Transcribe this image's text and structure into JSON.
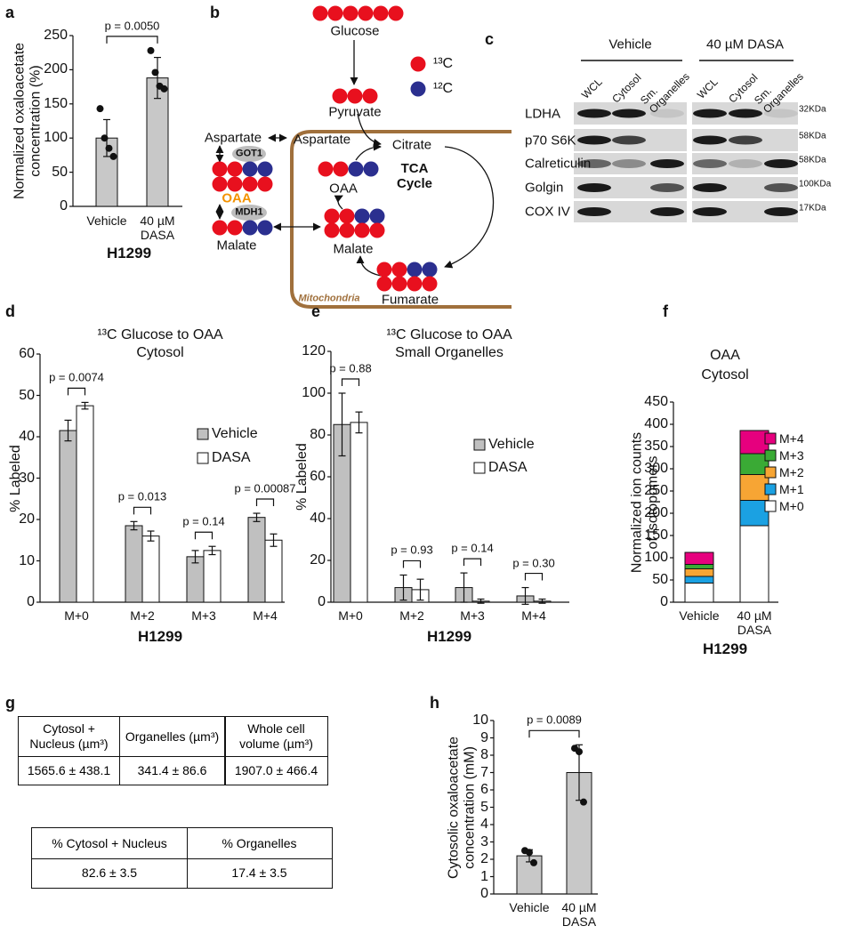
{
  "panel_labels": [
    "a",
    "b",
    "c",
    "d",
    "e",
    "f",
    "g",
    "h"
  ],
  "chart_data": [
    {
      "type": "bar",
      "ylabel": "Normalized oxaloacetate\nconcentration (%)",
      "xlabel": "H1299",
      "categories": [
        "Vehicle",
        "40 µM\nDASA"
      ],
      "values": [
        100,
        188
      ],
      "errors": [
        27,
        30
      ],
      "points": [
        [
          143,
          100,
          85,
          73
        ],
        [
          228,
          196,
          176,
          172
        ]
      ],
      "color": "#c8c8c8",
      "ylim": [
        0,
        250
      ],
      "yticks": [
        0,
        50,
        100,
        150,
        200,
        250
      ],
      "pvalue": "p = 0.0050"
    },
    {
      "type": "grouped_bar",
      "title": "¹³C Glucose to OAA",
      "subtitle": "Cytosol",
      "ylabel": "% Labeled",
      "xlabel": "H1299",
      "categories": [
        "M+0",
        "M+2",
        "M+3",
        "M+4"
      ],
      "series": [
        {
          "name": "Vehicle",
          "color": "#c0c0c0",
          "values": [
            41.5,
            18.5,
            11,
            20.5
          ],
          "errors": [
            2.5,
            1,
            1.5,
            1
          ]
        },
        {
          "name": "DASA",
          "color": "#ffffff",
          "values": [
            47.5,
            16,
            12.5,
            15
          ],
          "errors": [
            0.8,
            1.2,
            1,
            1.5
          ]
        }
      ],
      "ylim": [
        0,
        60
      ],
      "yticks": [
        0,
        10,
        20,
        30,
        40,
        50,
        60
      ],
      "pvalues": [
        "p = 0.0074",
        "p = 0.013",
        "p = 0.14",
        "p = 0.00087"
      ]
    },
    {
      "type": "grouped_bar",
      "title": "¹³C Glucose to OAA",
      "subtitle": "Small Organelles",
      "ylabel": "% Labeled",
      "xlabel": "H1299",
      "categories": [
        "M+0",
        "M+2",
        "M+3",
        "M+4"
      ],
      "series": [
        {
          "name": "Vehicle",
          "color": "#c0c0c0",
          "values": [
            85,
            7,
            7,
            3
          ],
          "errors": [
            15,
            6,
            7,
            4
          ]
        },
        {
          "name": "DASA",
          "color": "#ffffff",
          "values": [
            86,
            6,
            0.5,
            0.5
          ],
          "errors": [
            5,
            5,
            1,
            1
          ]
        }
      ],
      "ylim": [
        0,
        120
      ],
      "yticks": [
        0,
        20,
        40,
        60,
        80,
        100,
        120
      ],
      "pvalues": [
        "p = 0.88",
        "p = 0.93",
        "p = 0.14",
        "p = 0.30"
      ]
    },
    {
      "type": "stacked_bar",
      "title": "OAA",
      "subtitle": "Cytosol",
      "ylabel": "Normalized ion counts\nof isotopomers",
      "xlabel": "H1299",
      "categories": [
        "Vehicle",
        "40 µM\nDASA"
      ],
      "series": [
        {
          "name": "M+0",
          "color": "#ffffff",
          "values": [
            43,
            172
          ]
        },
        {
          "name": "M+1",
          "color": "#1ba1e2",
          "values": [
            15,
            57
          ]
        },
        {
          "name": "M+2",
          "color": "#f7a534",
          "values": [
            17,
            58
          ]
        },
        {
          "name": "M+3",
          "color": "#3aaa35",
          "values": [
            10,
            47
          ]
        },
        {
          "name": "M+4",
          "color": "#e6007e",
          "values": [
            27,
            52
          ]
        }
      ],
      "ylim": [
        0,
        450
      ],
      "yticks": [
        0,
        50,
        100,
        150,
        200,
        250,
        300,
        350,
        400,
        450
      ]
    },
    {
      "type": "bar",
      "ylabel": "Cytosolic oxaloacetate\nconcentration (mM)",
      "categories": [
        "Vehicle",
        "40 µM\nDASA"
      ],
      "values": [
        2.2,
        7
      ],
      "errors": [
        0.35,
        1.6
      ],
      "points": [
        [
          2.5,
          2.4,
          1.8
        ],
        [
          8.4,
          8.2,
          5.3
        ]
      ],
      "color": "#c8c8c8",
      "ylim": [
        0,
        10
      ],
      "yticks": [
        0,
        1,
        2,
        3,
        4,
        5,
        6,
        7,
        8,
        9,
        10
      ],
      "pvalue": "p = 0.0089"
    }
  ],
  "diagram": {
    "labels": [
      "Glucose",
      "Pyruvate",
      "Aspartate",
      "Aspartate",
      "Citrate",
      "GOT1",
      "OAA",
      "MDH1",
      "Malate",
      "OAA",
      "TCA\nCycle",
      "Malate",
      "Fumarate",
      "Mitochondria"
    ],
    "legend": [
      "¹³C",
      "¹²C"
    ]
  },
  "blot": {
    "groups": [
      "Vehicle",
      "40 µM DASA"
    ],
    "lanes": [
      "WCL",
      "Cytosol",
      "Sm.\nOrganelles"
    ],
    "proteins": [
      "LDHA",
      "p70 S6K",
      "Calreticulin",
      "Golgin",
      "COX IV"
    ],
    "sizes": [
      "32KDa",
      "58KDa",
      "58KDa",
      "100KDa",
      "17KDa"
    ]
  },
  "tables": [
    {
      "header": [
        "Cytosol  +\nNucleus (µm³)",
        "Organelles (µm³)",
        "Whole cell\nvolume (µm³)"
      ],
      "rows": [
        [
          "1565.6 ± 438.1",
          "341.4 ± 86.6",
          "1907.0 ± 466.4"
        ]
      ]
    },
    {
      "header": [
        "% Cytosol  + Nucleus",
        "% Organelles"
      ],
      "rows": [
        [
          "82.6 ± 3.5",
          "17.4 ± 3.5"
        ]
      ]
    }
  ]
}
